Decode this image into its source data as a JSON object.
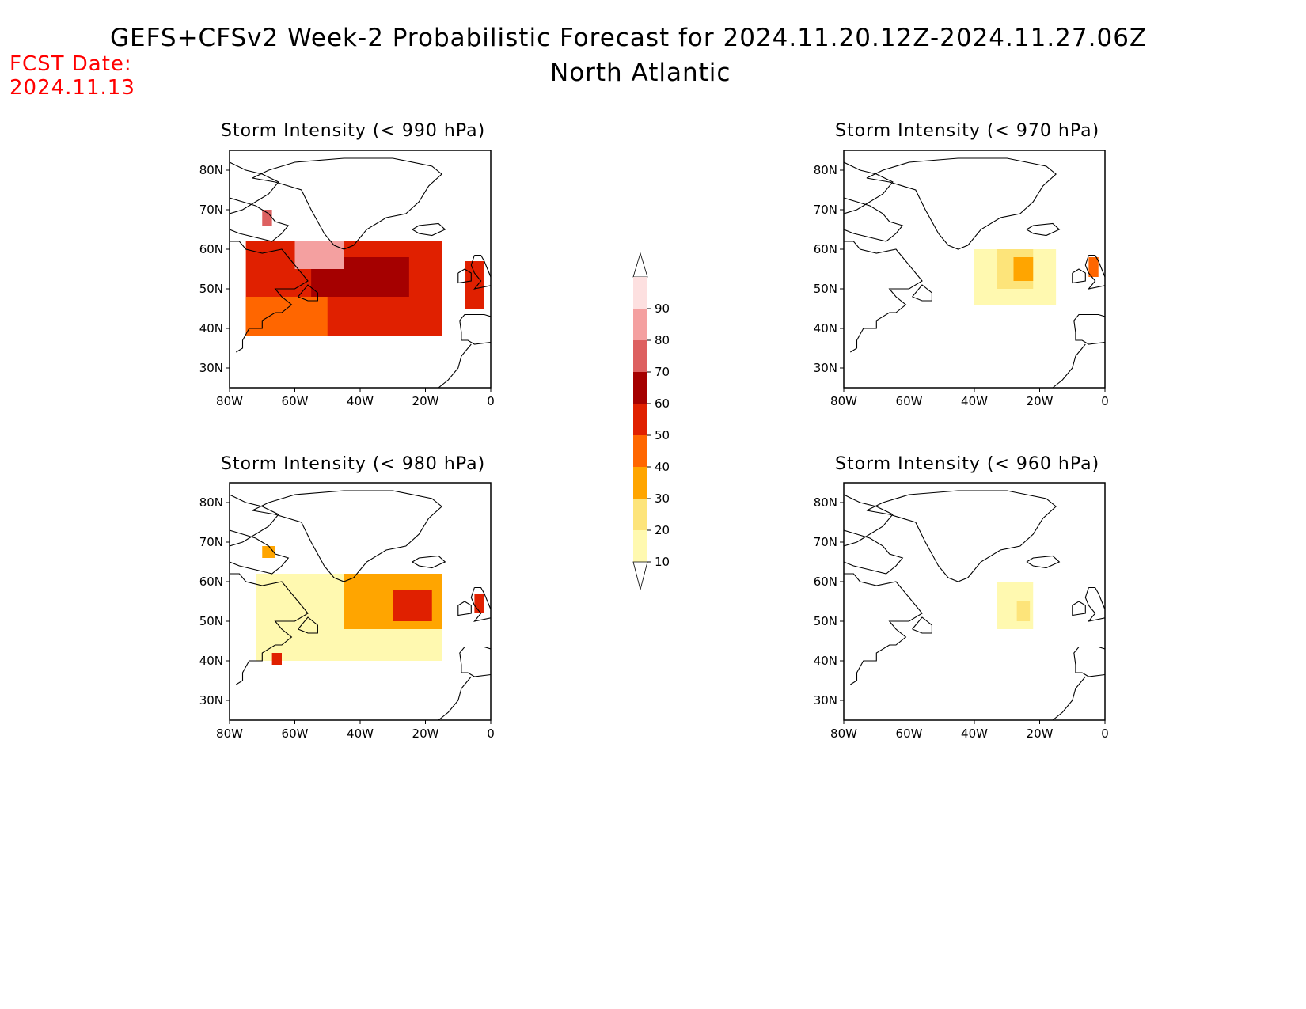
{
  "header": {
    "title": "GEFS+CFSv2 Week-2 Probabilistic Forecast for 2024.11.20.12Z-2024.11.27.06Z",
    "region": "North Atlantic",
    "fcst_label": "FCST Date:",
    "fcst_date": "2024.11.13"
  },
  "axes": {
    "lat_ticks": [
      "80N",
      "70N",
      "60N",
      "50N",
      "40N",
      "30N"
    ],
    "lon_ticks": [
      "80W",
      "60W",
      "40W",
      "20W",
      "0"
    ]
  },
  "colorbar": {
    "levels": [
      "10",
      "20",
      "30",
      "40",
      "50",
      "60",
      "70",
      "80",
      "90"
    ],
    "colors": [
      "#fff9b0",
      "#fde47a",
      "#ffa500",
      "#ff6600",
      "#e02000",
      "#a50000",
      "#dd6060",
      "#f4a0a0",
      "#fde0e0"
    ]
  },
  "chart_data": [
    {
      "type": "heatmap",
      "title": "Storm Intensity (< 990 hPa)",
      "units": "%",
      "levels": [
        10,
        20,
        30,
        40,
        50,
        60,
        70,
        80,
        90
      ],
      "regions": [
        {
          "lon": [
            -75,
            -15
          ],
          "lat": [
            38,
            62
          ],
          "level": "50-60"
        },
        {
          "lon": [
            -55,
            -25
          ],
          "lat": [
            48,
            58
          ],
          "level": "60-70"
        },
        {
          "lon": [
            -60,
            -45
          ],
          "lat": [
            55,
            62
          ],
          "level": "80-90"
        },
        {
          "lon": [
            -75,
            -50
          ],
          "lat": [
            38,
            48
          ],
          "level": "40-50"
        },
        {
          "lon": [
            -70,
            -67
          ],
          "lat": [
            66,
            70
          ],
          "level": "70-80"
        },
        {
          "lon": [
            -8,
            -2
          ],
          "lat": [
            45,
            57
          ],
          "level": "50-60"
        }
      ]
    },
    {
      "type": "heatmap",
      "title": "Storm Intensity (< 970 hPa)",
      "units": "%",
      "levels": [
        10,
        20,
        30,
        40,
        50,
        60,
        70,
        80,
        90
      ],
      "regions": [
        {
          "lon": [
            -40,
            -15
          ],
          "lat": [
            46,
            60
          ],
          "level": "10-20"
        },
        {
          "lon": [
            -33,
            -22
          ],
          "lat": [
            50,
            60
          ],
          "level": "20-30"
        },
        {
          "lon": [
            -28,
            -22
          ],
          "lat": [
            52,
            58
          ],
          "level": "30-40"
        },
        {
          "lon": [
            -5,
            -2
          ],
          "lat": [
            53,
            58
          ],
          "level": "40-50"
        }
      ]
    },
    {
      "type": "heatmap",
      "title": "Storm Intensity (< 980 hPa)",
      "units": "%",
      "levels": [
        10,
        20,
        30,
        40,
        50,
        60,
        70,
        80,
        90
      ],
      "regions": [
        {
          "lon": [
            -72,
            -15
          ],
          "lat": [
            40,
            62
          ],
          "level": "10-20"
        },
        {
          "lon": [
            -45,
            -15
          ],
          "lat": [
            48,
            62
          ],
          "level": "30-40"
        },
        {
          "lon": [
            -30,
            -18
          ],
          "lat": [
            50,
            58
          ],
          "level": "50-60"
        },
        {
          "lon": [
            -67,
            -64
          ],
          "lat": [
            39,
            42
          ],
          "level": "50-60"
        },
        {
          "lon": [
            -70,
            -66
          ],
          "lat": [
            66,
            69
          ],
          "level": "30-40"
        },
        {
          "lon": [
            -5,
            -2
          ],
          "lat": [
            52,
            57
          ],
          "level": "50-60"
        }
      ]
    },
    {
      "type": "heatmap",
      "title": "Storm Intensity (< 960 hPa)",
      "units": "%",
      "levels": [
        10,
        20,
        30,
        40,
        50,
        60,
        70,
        80,
        90
      ],
      "regions": [
        {
          "lon": [
            -33,
            -22
          ],
          "lat": [
            48,
            60
          ],
          "level": "10-20"
        },
        {
          "lon": [
            -27,
            -23
          ],
          "lat": [
            50,
            55
          ],
          "level": "20-30"
        }
      ]
    }
  ]
}
